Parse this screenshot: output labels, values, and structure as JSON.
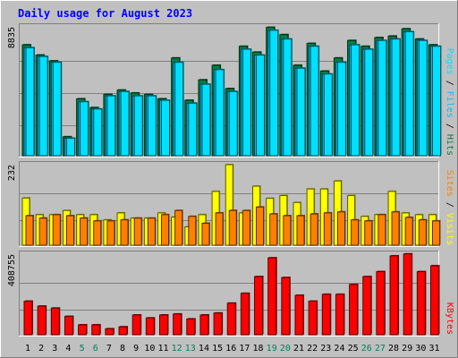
{
  "title": "Daily usage for August 2023",
  "colors": {
    "background": "#c0c0c0",
    "title": "#0000ff",
    "hits": "#008040",
    "files": "#00c0ff",
    "pages": "#00e0ff",
    "visits": "#ffff00",
    "sites": "#ff8000",
    "kbytes": "#ff0000",
    "weekend_label": "#00805c",
    "weekday_label": "#000000"
  },
  "chart_data": [
    {
      "type": "bar",
      "panel": "hits-files-pages",
      "max_label": "8835",
      "ylim": [
        0,
        8835
      ],
      "categories": [
        "1",
        "2",
        "3",
        "4",
        "5",
        "6",
        "7",
        "8",
        "9",
        "10",
        "11",
        "12",
        "13",
        "14",
        "15",
        "16",
        "17",
        "18",
        "19",
        "20",
        "21",
        "22",
        "23",
        "24",
        "25",
        "26",
        "27",
        "28",
        "29",
        "30",
        "31"
      ],
      "weekend_days": [
        "5",
        "6",
        "12",
        "13",
        "19",
        "20",
        "26",
        "27"
      ],
      "legend": [
        {
          "key": "pages",
          "label": "Pages"
        },
        {
          "key": "files",
          "label": "Files"
        },
        {
          "key": "hits",
          "label": "Hits"
        }
      ],
      "separator": "/",
      "series": [
        {
          "name": "Hits",
          "key": "hits",
          "values": [
            7600,
            6900,
            6500,
            1300,
            3900,
            3300,
            4200,
            4500,
            4300,
            4200,
            3900,
            6700,
            3800,
            5200,
            6200,
            4600,
            7500,
            7100,
            8800,
            8300,
            6200,
            7700,
            5800,
            6700,
            7900,
            7500,
            8100,
            8200,
            8700,
            8000,
            7600
          ]
        },
        {
          "name": "Files",
          "key": "files",
          "values": [
            7400,
            6800,
            6400,
            1200,
            3700,
            3200,
            4100,
            4400,
            4100,
            4100,
            3800,
            6400,
            3600,
            4900,
            5900,
            4400,
            7300,
            6900,
            8600,
            8000,
            6000,
            7500,
            5600,
            6400,
            7600,
            7300,
            7900,
            8000,
            8500,
            7900,
            7500
          ]
        },
        {
          "name": "Pages",
          "key": "pages",
          "values": [
            7400,
            6800,
            6400,
            1200,
            3700,
            3200,
            4100,
            4400,
            4100,
            4100,
            3800,
            6400,
            3600,
            4900,
            5900,
            4400,
            7300,
            6900,
            8600,
            8000,
            6000,
            7500,
            5600,
            6400,
            7600,
            7300,
            7900,
            8000,
            8500,
            7900,
            7500
          ]
        }
      ]
    },
    {
      "type": "bar",
      "panel": "visits-sites",
      "max_label": "232",
      "ylim": [
        0,
        232
      ],
      "legend": [
        {
          "key": "sites",
          "label": "Sites"
        },
        {
          "key": "visits",
          "label": "Visits"
        }
      ],
      "separator": "/",
      "series": [
        {
          "name": "Visits",
          "key": "visits",
          "values": [
            136,
            88,
            88,
            100,
            88,
            88,
            73,
            93,
            78,
            78,
            93,
            81,
            53,
            88,
            155,
            232,
            93,
            170,
            135,
            143,
            123,
            162,
            162,
            185,
            143,
            83,
            88,
            155,
            93,
            88,
            88
          ]
        },
        {
          "name": "Sites",
          "key": "sites",
          "values": [
            85,
            78,
            88,
            85,
            78,
            70,
            70,
            73,
            78,
            78,
            88,
            100,
            83,
            63,
            93,
            100,
            100,
            110,
            90,
            85,
            85,
            90,
            93,
            96,
            73,
            70,
            88,
            96,
            80,
            73,
            70
          ]
        }
      ]
    },
    {
      "type": "bar",
      "panel": "kbytes",
      "max_label": "408755",
      "ylim": [
        0,
        408755
      ],
      "legend": [
        {
          "key": "kbytes",
          "label": "KBytes"
        }
      ],
      "series": [
        {
          "name": "KBytes",
          "key": "kbytes",
          "values": [
            170000,
            145000,
            135000,
            93000,
            50000,
            50000,
            30000,
            40000,
            100000,
            85000,
            100000,
            105000,
            80000,
            100000,
            110000,
            160000,
            210000,
            295000,
            390000,
            290000,
            200000,
            170000,
            205000,
            205000,
            255000,
            295000,
            320000,
            400000,
            410000,
            320000,
            350000
          ]
        }
      ]
    }
  ]
}
